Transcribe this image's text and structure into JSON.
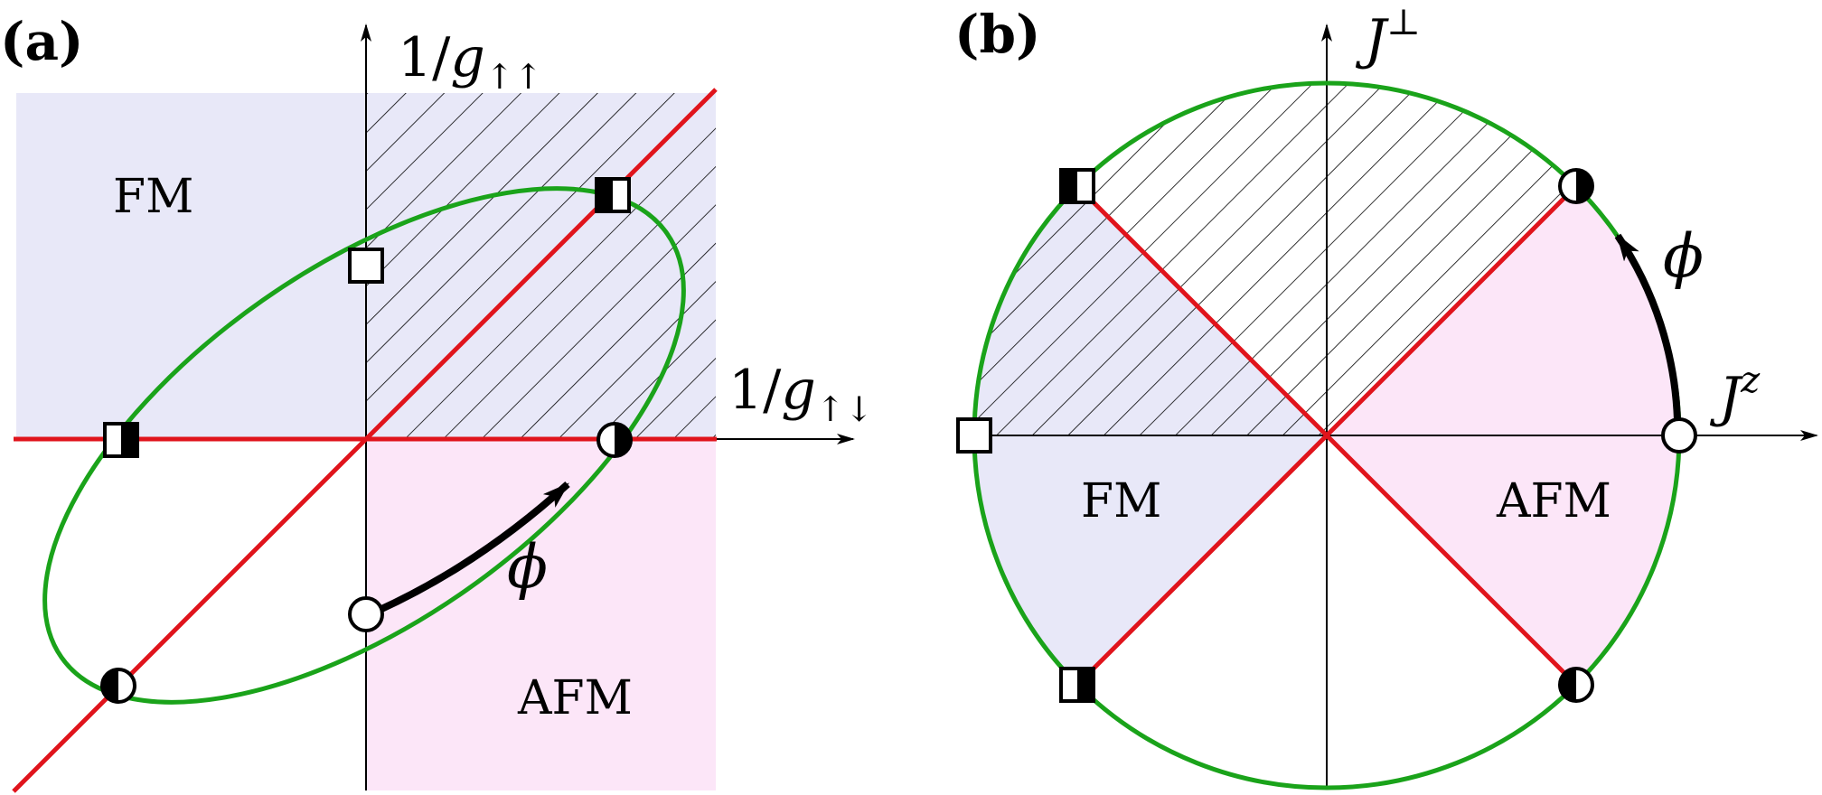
{
  "colors": {
    "fm_region": "#e8e8f8",
    "afm_region": "#fce6f8",
    "critical_line": "#e0141c",
    "ellipse": "#1aa31a",
    "axis": "#000000",
    "hatch": "#000000",
    "arrow": "#000000"
  },
  "panel_a": {
    "label": "(a)",
    "y_axis_label": {
      "prefix": "1/",
      "var": "g",
      "sub": "↑↑"
    },
    "x_axis_label": {
      "prefix": "1/",
      "var": "g",
      "sub": "↑↓"
    },
    "fm_label": "FM",
    "afm_label": "AFM",
    "phi_label": "ϕ",
    "markers": [
      "open-square",
      "half-filled-square-left",
      "half-filled-square-right",
      "open-circle",
      "half-filled-circle-left",
      "half-filled-circle-right"
    ]
  },
  "panel_b": {
    "label": "(b)",
    "y_axis_label": {
      "var": "J",
      "sup": "⊥"
    },
    "x_axis_label": {
      "var": "J",
      "sup": "z"
    },
    "fm_label": "FM",
    "afm_label": "AFM",
    "phi_label": "ϕ",
    "markers": [
      "open-square",
      "half-filled-square-left",
      "half-filled-square-right",
      "open-circle",
      "half-filled-circle-left",
      "half-filled-circle-right"
    ]
  }
}
